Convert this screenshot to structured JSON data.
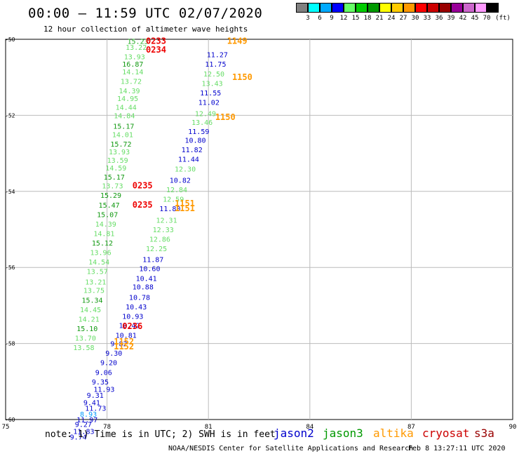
{
  "header": {
    "title": "00:00 – 11:59 UTC 02/07/2020",
    "subtitle": "12 hour collection of altimeter wave heights"
  },
  "colorbar": {
    "unit": "(ft)",
    "colors": [
      "#808080",
      "#00ffff",
      "#00aaff",
      "#0000ff",
      "#66ff66",
      "#00cc00",
      "#009900",
      "#ffff00",
      "#ffcc00",
      "#ff9900",
      "#ff0000",
      "#cc0000",
      "#990000",
      "#990099",
      "#cc66cc",
      "#ff99ff",
      "#000000"
    ],
    "labels": [
      "3",
      "6",
      "9",
      "12",
      "15",
      "18",
      "21",
      "24",
      "27",
      "30",
      "33",
      "36",
      "39",
      "42",
      "45",
      "70"
    ]
  },
  "chart_data": {
    "type": "scatter",
    "xlim": [
      75,
      90
    ],
    "ylim": [
      -60,
      -50
    ],
    "x_ticks": [
      "75",
      "78",
      "81",
      "84",
      "87",
      "90"
    ],
    "y_ticks": [
      "-50",
      "-52",
      "-54",
      "-56",
      "-58",
      "-60"
    ],
    "grid": true,
    "series": [
      {
        "name": "jason3",
        "color_key": "green values",
        "points": [
          {
            "x": 78.6,
            "y": -50.05,
            "v": "15.23",
            "c": "#22aa22"
          },
          {
            "x": 78.55,
            "y": -50.2,
            "v": "13.22",
            "c": "#66dd66"
          },
          {
            "x": 78.5,
            "y": -50.45,
            "v": "13.93",
            "c": "#66dd66"
          },
          {
            "x": 78.45,
            "y": -50.65,
            "v": "16.87",
            "c": "#119911"
          },
          {
            "x": 78.45,
            "y": -50.85,
            "v": "14.14",
            "c": "#66dd66"
          },
          {
            "x": 78.4,
            "y": -51.1,
            "v": "13.72",
            "c": "#66dd66"
          },
          {
            "x": 78.35,
            "y": -51.35,
            "v": "14.39",
            "c": "#66dd66"
          },
          {
            "x": 78.3,
            "y": -51.55,
            "v": "14.95",
            "c": "#66dd66"
          },
          {
            "x": 78.25,
            "y": -51.78,
            "v": "14.44",
            "c": "#66dd66"
          },
          {
            "x": 78.2,
            "y": -52.0,
            "v": "14.84",
            "c": "#66dd66"
          },
          {
            "x": 78.18,
            "y": -52.28,
            "v": "15.17",
            "c": "#119911"
          },
          {
            "x": 78.15,
            "y": -52.5,
            "v": "14.01",
            "c": "#66dd66"
          },
          {
            "x": 78.1,
            "y": -52.75,
            "v": "15.72",
            "c": "#119911"
          },
          {
            "x": 78.05,
            "y": -52.95,
            "v": "13.93",
            "c": "#66dd66"
          },
          {
            "x": 78.0,
            "y": -53.17,
            "v": "13.59",
            "c": "#66dd66"
          },
          {
            "x": 77.95,
            "y": -53.38,
            "v": "14.59",
            "c": "#66dd66"
          },
          {
            "x": 77.9,
            "y": -53.62,
            "v": "15.17",
            "c": "#119911"
          },
          {
            "x": 77.85,
            "y": -53.85,
            "v": "13.73",
            "c": "#66dd66"
          },
          {
            "x": 77.8,
            "y": -54.1,
            "v": "15.29",
            "c": "#119911"
          },
          {
            "x": 77.75,
            "y": -54.35,
            "v": "15.47",
            "c": "#119911"
          },
          {
            "x": 77.7,
            "y": -54.6,
            "v": "15.07",
            "c": "#119911"
          },
          {
            "x": 77.65,
            "y": -54.85,
            "v": "14.39",
            "c": "#66dd66"
          },
          {
            "x": 77.6,
            "y": -55.1,
            "v": "14.81",
            "c": "#66dd66"
          },
          {
            "x": 77.55,
            "y": -55.35,
            "v": "15.12",
            "c": "#119911"
          },
          {
            "x": 77.5,
            "y": -55.6,
            "v": "13.96",
            "c": "#66dd66"
          },
          {
            "x": 77.45,
            "y": -55.85,
            "v": "14.54",
            "c": "#66dd66"
          },
          {
            "x": 77.4,
            "y": -56.1,
            "v": "13.57",
            "c": "#66dd66"
          },
          {
            "x": 77.35,
            "y": -56.37,
            "v": "13.21",
            "c": "#66dd66"
          },
          {
            "x": 77.3,
            "y": -56.6,
            "v": "13.75",
            "c": "#66dd66"
          },
          {
            "x": 77.25,
            "y": -56.85,
            "v": "15.34",
            "c": "#119911"
          },
          {
            "x": 77.2,
            "y": -57.1,
            "v": "14.45",
            "c": "#66dd66"
          },
          {
            "x": 77.15,
            "y": -57.35,
            "v": "14.21",
            "c": "#66dd66"
          },
          {
            "x": 77.1,
            "y": -57.6,
            "v": "15.10",
            "c": "#119911"
          },
          {
            "x": 77.05,
            "y": -57.85,
            "v": "13.70",
            "c": "#66dd66"
          },
          {
            "x": 77.0,
            "y": -58.1,
            "v": "13.58",
            "c": "#66dd66"
          }
        ]
      },
      {
        "name": "jason2",
        "color_key": "blue values",
        "points": [
          {
            "x": 80.95,
            "y": -50.4,
            "v": "11.27",
            "c": "#0000cc"
          },
          {
            "x": 80.9,
            "y": -50.65,
            "v": "11.75",
            "c": "#0000cc"
          },
          {
            "x": 80.85,
            "y": -50.9,
            "v": "12.50",
            "c": "#66dd66"
          },
          {
            "x": 80.8,
            "y": -51.15,
            "v": "13.43",
            "c": "#66dd66"
          },
          {
            "x": 80.75,
            "y": -51.4,
            "v": "11.55",
            "c": "#0000cc"
          },
          {
            "x": 80.7,
            "y": -51.65,
            "v": "11.02",
            "c": "#0000cc"
          },
          {
            "x": 80.6,
            "y": -51.95,
            "v": "12.49",
            "c": "#66dd66"
          },
          {
            "x": 80.5,
            "y": -52.18,
            "v": "13.46",
            "c": "#66dd66"
          },
          {
            "x": 80.4,
            "y": -52.42,
            "v": "11.59",
            "c": "#0000cc"
          },
          {
            "x": 80.3,
            "y": -52.65,
            "v": "10.80",
            "c": "#0000cc"
          },
          {
            "x": 80.2,
            "y": -52.9,
            "v": "11.82",
            "c": "#0000cc"
          },
          {
            "x": 80.1,
            "y": -53.15,
            "v": "11.44",
            "c": "#0000cc"
          },
          {
            "x": 80.0,
            "y": -53.4,
            "v": "12.30",
            "c": "#66dd66"
          },
          {
            "x": 79.85,
            "y": -53.7,
            "v": "10.82",
            "c": "#0000cc"
          },
          {
            "x": 79.75,
            "y": -53.95,
            "v": "12.84",
            "c": "#66dd66"
          },
          {
            "x": 79.65,
            "y": -54.2,
            "v": "12.59",
            "c": "#66dd66"
          },
          {
            "x": 79.55,
            "y": -54.45,
            "v": "11.80",
            "c": "#0000cc"
          },
          {
            "x": 79.45,
            "y": -54.75,
            "v": "12.31",
            "c": "#66dd66"
          },
          {
            "x": 79.35,
            "y": -55.0,
            "v": "12.33",
            "c": "#66dd66"
          },
          {
            "x": 79.25,
            "y": -55.25,
            "v": "12.86",
            "c": "#66dd66"
          },
          {
            "x": 79.15,
            "y": -55.5,
            "v": "12.25",
            "c": "#66dd66"
          },
          {
            "x": 79.05,
            "y": -55.78,
            "v": "11.87",
            "c": "#0000cc"
          },
          {
            "x": 78.95,
            "y": -56.02,
            "v": "10.60",
            "c": "#0000cc"
          },
          {
            "x": 78.85,
            "y": -56.28,
            "v": "10.41",
            "c": "#0000cc"
          },
          {
            "x": 78.75,
            "y": -56.5,
            "v": "10.88",
            "c": "#0000cc"
          },
          {
            "x": 78.65,
            "y": -56.78,
            "v": "10.78",
            "c": "#0000cc"
          },
          {
            "x": 78.55,
            "y": -57.03,
            "v": "10.43",
            "c": "#0000cc"
          },
          {
            "x": 78.45,
            "y": -57.28,
            "v": "10.93",
            "c": "#0000cc"
          },
          {
            "x": 78.35,
            "y": -57.52,
            "v": "10.42",
            "c": "#0000cc"
          },
          {
            "x": 78.25,
            "y": -57.78,
            "v": "10.81",
            "c": "#0000cc"
          },
          {
            "x": 78.1,
            "y": -58.0,
            "v": "9.82",
            "c": "#0000cc"
          },
          {
            "x": 77.95,
            "y": -58.25,
            "v": "9.30",
            "c": "#0000cc"
          },
          {
            "x": 77.8,
            "y": -58.5,
            "v": "9.20",
            "c": "#0000cc"
          },
          {
            "x": 77.65,
            "y": -58.75,
            "v": "9.06",
            "c": "#0000cc"
          },
          {
            "x": 77.55,
            "y": -59.0,
            "v": "9.35",
            "c": "#0000cc"
          },
          {
            "x": 77.6,
            "y": -59.2,
            "v": "11.93",
            "c": "#0000cc"
          },
          {
            "x": 77.4,
            "y": -59.35,
            "v": "9.31",
            "c": "#0000cc"
          },
          {
            "x": 77.3,
            "y": -59.55,
            "v": "9.41",
            "c": "#0000cc"
          },
          {
            "x": 77.35,
            "y": -59.7,
            "v": "11.73",
            "c": "#0000cc"
          },
          {
            "x": 77.2,
            "y": -59.85,
            "v": "8.93",
            "c": "#0099ff"
          },
          {
            "x": 77.1,
            "y": -60.0,
            "v": "11.97",
            "c": "#0000cc"
          },
          {
            "x": 77.05,
            "y": -60.12,
            "v": "9.27",
            "c": "#0000cc"
          },
          {
            "x": 77.0,
            "y": -60.3,
            "v": "11.83",
            "c": "#0000cc"
          },
          {
            "x": 76.9,
            "y": -60.45,
            "v": "9.74",
            "c": "#0000cc"
          }
        ]
      },
      {
        "name": "time_labels",
        "points": [
          {
            "x": 79.15,
            "y": -50.05,
            "v": "0233",
            "c": "#ee0000"
          },
          {
            "x": 79.15,
            "y": -50.28,
            "v": "0234",
            "c": "#ee0000"
          },
          {
            "x": 78.75,
            "y": -53.85,
            "v": "0235",
            "c": "#ee0000"
          },
          {
            "x": 78.75,
            "y": -54.35,
            "v": "0235",
            "c": "#ee0000"
          },
          {
            "x": 78.45,
            "y": -57.55,
            "v": "0236",
            "c": "#ee0000"
          },
          {
            "x": 81.55,
            "y": -50.05,
            "v": "1149",
            "c": "#ff9900"
          },
          {
            "x": 81.7,
            "y": -51.0,
            "v": "1150",
            "c": "#ff9900"
          },
          {
            "x": 81.2,
            "y": -52.05,
            "v": "1150",
            "c": "#ff9900"
          },
          {
            "x": 80.0,
            "y": -54.32,
            "v": "1151",
            "c": "#ff9900"
          },
          {
            "x": 80.0,
            "y": -54.45,
            "v": "1151",
            "c": "#ff9900"
          },
          {
            "x": 78.2,
            "y": -57.95,
            "v": "1152",
            "c": "#ff9900"
          },
          {
            "x": 78.2,
            "y": -58.08,
            "v": "1152",
            "c": "#ff9900"
          }
        ]
      }
    ]
  },
  "footer": {
    "note": "note: 1) Time is in UTC; 2) SWH is in feet",
    "satellites": [
      {
        "name": "jason2",
        "color": "#0000cc"
      },
      {
        "name": "jason3",
        "color": "#009900"
      },
      {
        "name": "altika",
        "color": "#ff9900"
      },
      {
        "name": "cryosat",
        "color": "#cc0000"
      },
      {
        "name": "s3a",
        "color": "#990000"
      }
    ],
    "credit": "NOAA/NESDIS Center for Satellite Applications and Research",
    "timestamp": "Feb  8 13:27:11 UTC 2020"
  }
}
